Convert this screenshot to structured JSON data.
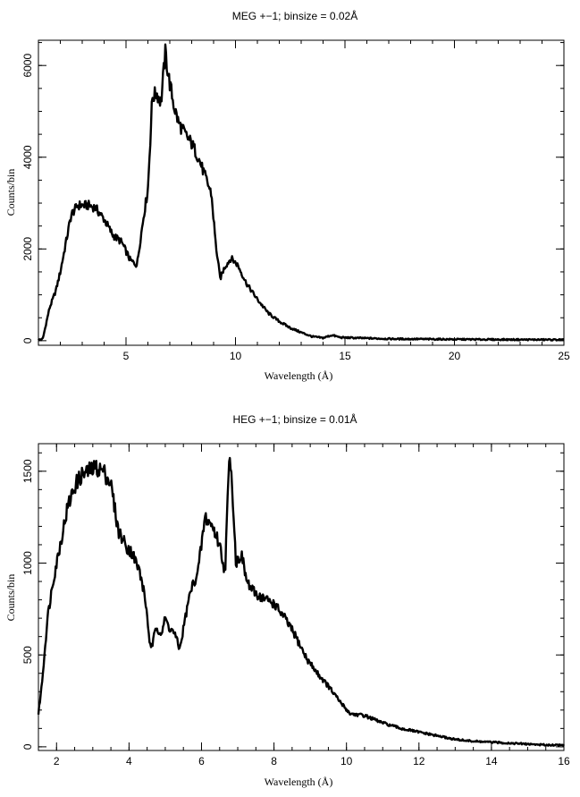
{
  "chart_data": [
    {
      "type": "line",
      "title": "MEG +−1; binsize = 0.02Å",
      "xlabel": "Wavelength (Å)",
      "ylabel": "Counts/bin",
      "xlim": [
        1.0,
        25.0
      ],
      "ylim": [
        -100,
        6550
      ],
      "xticks": [
        5,
        10,
        15,
        20,
        25
      ],
      "yticks": [
        0,
        2000,
        4000,
        6000
      ],
      "xtick_labels": [
        "5",
        "10",
        "15",
        "20",
        "25"
      ],
      "ytick_labels": [
        "0",
        "2000",
        "4000",
        "6000"
      ],
      "x_minor_step": 1,
      "y_minor_step": 500,
      "series": [
        {
          "x": [
            1.0,
            1.2,
            1.5,
            1.8,
            2.0,
            2.2,
            2.5,
            2.8,
            3.0,
            3.3,
            3.6,
            4.0,
            4.4,
            4.8,
            5.2,
            5.5,
            5.8,
            6.0,
            6.2,
            6.4,
            6.6,
            6.8,
            6.9,
            7.0,
            7.2,
            7.4,
            7.7,
            8.0,
            8.3,
            8.6,
            8.9,
            9.1,
            9.3,
            9.5,
            9.8,
            10.1,
            10.5,
            11.0,
            11.5,
            12.0,
            12.5,
            13.0,
            13.5,
            14.0,
            14.4,
            14.8,
            15.5,
            17.0,
            20.0,
            22.0,
            25.0
          ],
          "y": [
            20,
            40,
            700,
            1100,
            1500,
            2000,
            2750,
            2950,
            2950,
            2950,
            2900,
            2650,
            2300,
            2150,
            1750,
            1650,
            2700,
            3300,
            5300,
            5400,
            5200,
            6300,
            5900,
            5600,
            5100,
            4750,
            4500,
            4300,
            4000,
            3600,
            3200,
            2100,
            1350,
            1600,
            1800,
            1650,
            1250,
            900,
            600,
            420,
            280,
            180,
            90,
            60,
            120,
            70,
            60,
            40,
            30,
            25,
            20
          ]
        }
      ]
    },
    {
      "type": "line",
      "title": "HEG +−1; binsize = 0.01Å",
      "xlabel": "Wavelength (Å)",
      "ylabel": "Counts/bin",
      "xlim": [
        1.5,
        16.0
      ],
      "ylim": [
        -20,
        1650
      ],
      "xticks": [
        2,
        4,
        6,
        8,
        10,
        12,
        14,
        16
      ],
      "yticks": [
        0,
        500,
        1000,
        1500
      ],
      "xtick_labels": [
        "2",
        "4",
        "6",
        "8",
        "10",
        "12",
        "14",
        "16"
      ],
      "ytick_labels": [
        "0",
        "500",
        "1000",
        "1500"
      ],
      "x_minor_step": 0.5,
      "y_minor_step": 100,
      "series": [
        {
          "x": [
            1.5,
            1.6,
            1.75,
            1.9,
            2.1,
            2.3,
            2.5,
            2.7,
            2.9,
            3.1,
            3.3,
            3.5,
            3.7,
            3.9,
            4.1,
            4.3,
            4.45,
            4.6,
            4.75,
            4.9,
            5.0,
            5.1,
            5.25,
            5.4,
            5.55,
            5.7,
            5.9,
            6.1,
            6.3,
            6.5,
            6.65,
            6.75,
            6.8,
            6.88,
            6.95,
            7.1,
            7.25,
            7.4,
            7.6,
            7.8,
            8.0,
            8.3,
            8.6,
            8.9,
            9.2,
            9.5,
            9.8,
            10.1,
            10.5,
            11.0,
            11.5,
            12.0,
            12.5,
            13.0,
            13.5,
            14.0,
            14.5,
            15.0,
            15.5,
            16.0
          ],
          "y": [
            180,
            350,
            700,
            900,
            1100,
            1300,
            1420,
            1480,
            1500,
            1520,
            1500,
            1430,
            1180,
            1100,
            1050,
            950,
            800,
            520,
            650,
            620,
            700,
            650,
            620,
            530,
            700,
            850,
            950,
            1250,
            1200,
            1100,
            950,
            1500,
            1570,
            1300,
            1000,
            1050,
            900,
            850,
            820,
            800,
            780,
            700,
            600,
            480,
            400,
            330,
            250,
            180,
            170,
            130,
            100,
            80,
            60,
            40,
            30,
            25,
            20,
            15,
            10,
            10
          ]
        }
      ]
    }
  ]
}
